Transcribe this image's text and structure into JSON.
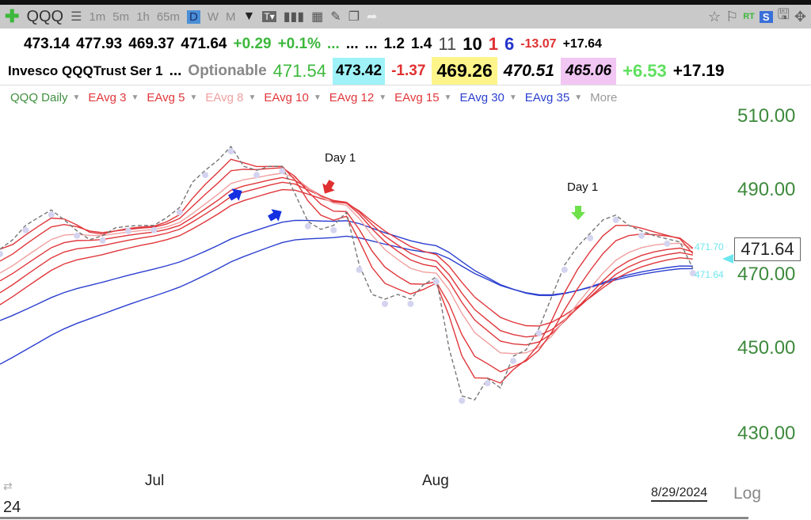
{
  "toolbar": {
    "symbol": "QQQ",
    "intervals": [
      "1m",
      "5m",
      "1h",
      "65m",
      "D",
      "W",
      "M"
    ],
    "selected_interval": "D",
    "icons": [
      "add-icon",
      "list-icon",
      "dropdown-icon",
      "text-icon",
      "bars-icon",
      "grid-add-icon",
      "pencil-icon",
      "folder-icon",
      "share-icon"
    ],
    "right_icons": [
      "star-icon",
      "flag-icon",
      "rt-badge",
      "s-button",
      "save-icon",
      "move-icon"
    ],
    "rt": "RT",
    "s": "S"
  },
  "quote_row1": {
    "dots": "...",
    "open": "473.14",
    "high": "477.93",
    "low": "469.37",
    "close": "471.64",
    "change": "+0.29",
    "change_pct": "+0.1%",
    "e1": "...",
    "e2": "...",
    "e3": "...",
    "v1": "1.2",
    "v2": "1.4",
    "v3": "11",
    "v4": "10",
    "v5": "1",
    "v6": "6",
    "v7": "-13.07",
    "v8": "+17.64"
  },
  "quote_row2": {
    "name": "Invesco QQQTrust Ser 1",
    "dots": "...",
    "optionable": "Optionable",
    "v1": "471.54",
    "v2": "473.42",
    "v3": "-1.37",
    "v4": "469.26",
    "v5": "470.51",
    "v6": "465.06",
    "v7": "+6.53",
    "v8": "+17.19"
  },
  "colors": {
    "up": "#3cb83c",
    "down": "#e03030",
    "cyan_bg": "#9ff3f8",
    "yellow_bg": "#fdf58a",
    "pink_bg": "#f1c6f3",
    "axis_green": "#3d8a3d"
  },
  "legend": [
    {
      "label": "QQQ Daily",
      "color": "#3f8f3f"
    },
    {
      "label": "EAvg 3",
      "color": "#e0373b"
    },
    {
      "label": "EAvg 5",
      "color": "#e0373b"
    },
    {
      "label": "EAvg 8",
      "color": "#f0a0a0"
    },
    {
      "label": "EAvg 10",
      "color": "#e0373b"
    },
    {
      "label": "EAvg 12",
      "color": "#e0373b"
    },
    {
      "label": "EAvg 15",
      "color": "#e0373b"
    },
    {
      "label": "EAvg 30",
      "color": "#2b3fd0"
    },
    {
      "label": "EAvg 35",
      "color": "#2b3fd0"
    },
    {
      "label": "More",
      "color": "#999999"
    }
  ],
  "chart_data": {
    "type": "line",
    "y_ticks": [
      "510.00",
      "490.00",
      "470.00",
      "450.00",
      "430.00"
    ],
    "ylim": [
      420,
      515
    ],
    "x_labels": [
      "Jul",
      "Aug"
    ],
    "closes": [
      476.5,
      478.9,
      482.5,
      484.5,
      486.4,
      483.9,
      481.1,
      478.9,
      479.9,
      481.9,
      482.3,
      482.5,
      482.5,
      484.5,
      487.0,
      493.4,
      496.4,
      499.0,
      502.4,
      497.4,
      496.4,
      497.4,
      497.4,
      490.4,
      483.5,
      481.5,
      482.5,
      485.8,
      472.5,
      465.1,
      463.9,
      465.1,
      463.9,
      467.5,
      469.5,
      451.5,
      439.5,
      438.5,
      443.9,
      441.5,
      449.5,
      451.1,
      456.5,
      464.5,
      472.5,
      477.1,
      480.5,
      483.9,
      485.1,
      482.5,
      481.1,
      479.9,
      479.1,
      478.3,
      471.64
    ],
    "emas": [
      {
        "period": 3,
        "start": 476.5,
        "color": "#e0373b"
      },
      {
        "period": 5,
        "start": 473.5,
        "color": "#e0373b"
      },
      {
        "period": 8,
        "start": 470.5,
        "color": "#f0a0a0"
      },
      {
        "period": 10,
        "start": 468.5,
        "color": "#e0373b"
      },
      {
        "period": 12,
        "start": 465.5,
        "color": "#e0373b"
      },
      {
        "period": 15,
        "start": 462.5,
        "color": "#e0373b"
      },
      {
        "period": 30,
        "start": 458.5,
        "color": "#2b3fd0"
      },
      {
        "period": 35,
        "start": 447.5,
        "color": "#2b3fd0"
      }
    ],
    "annotations": [
      {
        "text": "Day 1",
        "arrow": "red"
      },
      {
        "text": "Day 1",
        "arrow": "green"
      }
    ],
    "last_price": "471.64",
    "marker_upper": "471.70",
    "marker_lower": "471.64"
  },
  "footer": {
    "date": "8/29/2024",
    "log": "Log",
    "left_text": "24"
  }
}
